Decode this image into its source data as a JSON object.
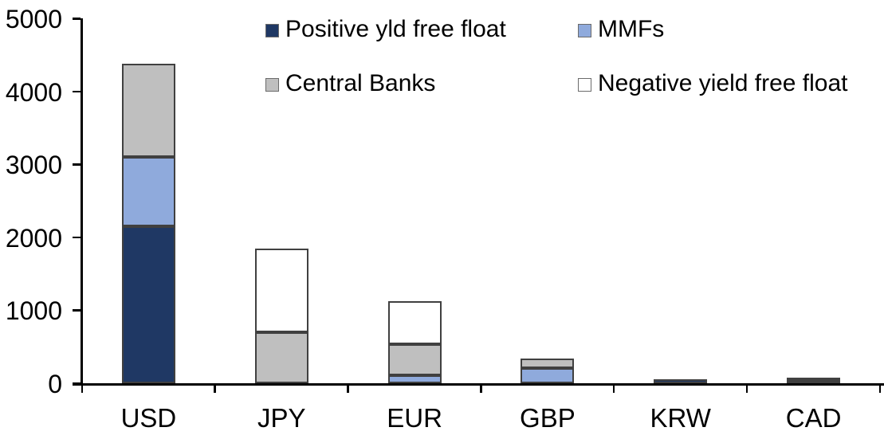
{
  "chart_data": {
    "type": "bar",
    "stacked": true,
    "title": "",
    "xlabel": "",
    "ylabel": "",
    "categories": [
      "USD",
      "JPY",
      "EUR",
      "GBP",
      "KRW",
      "CAD"
    ],
    "series": [
      {
        "name": "Positive yld free float",
        "color": "#1F3864",
        "values": [
          2150,
          0,
          0,
          0,
          50,
          45
        ]
      },
      {
        "name": "MMFs",
        "color": "#8FAADC",
        "values": [
          950,
          0,
          110,
          210,
          0,
          0
        ]
      },
      {
        "name": "Central Banks",
        "color": "#BFBFBF",
        "values": [
          1280,
          700,
          430,
          130,
          0,
          30
        ]
      },
      {
        "name": "Negative yield free float",
        "color": "#FFFFFF",
        "values": [
          0,
          1150,
          580,
          0,
          0,
          0
        ]
      }
    ],
    "ylim": [
      0,
      5000
    ],
    "yticks": [
      0,
      1000,
      2000,
      3000,
      4000,
      5000
    ],
    "grid": false,
    "legend_position": "top",
    "legend_rows": [
      [
        "Positive yld free float",
        "MMFs"
      ],
      [
        "Central Banks",
        "Negative yield free float"
      ]
    ],
    "colors": {
      "axis": "#000000",
      "text": "#000000",
      "segment_border": "#404040",
      "background": "#FFFFFF"
    }
  }
}
